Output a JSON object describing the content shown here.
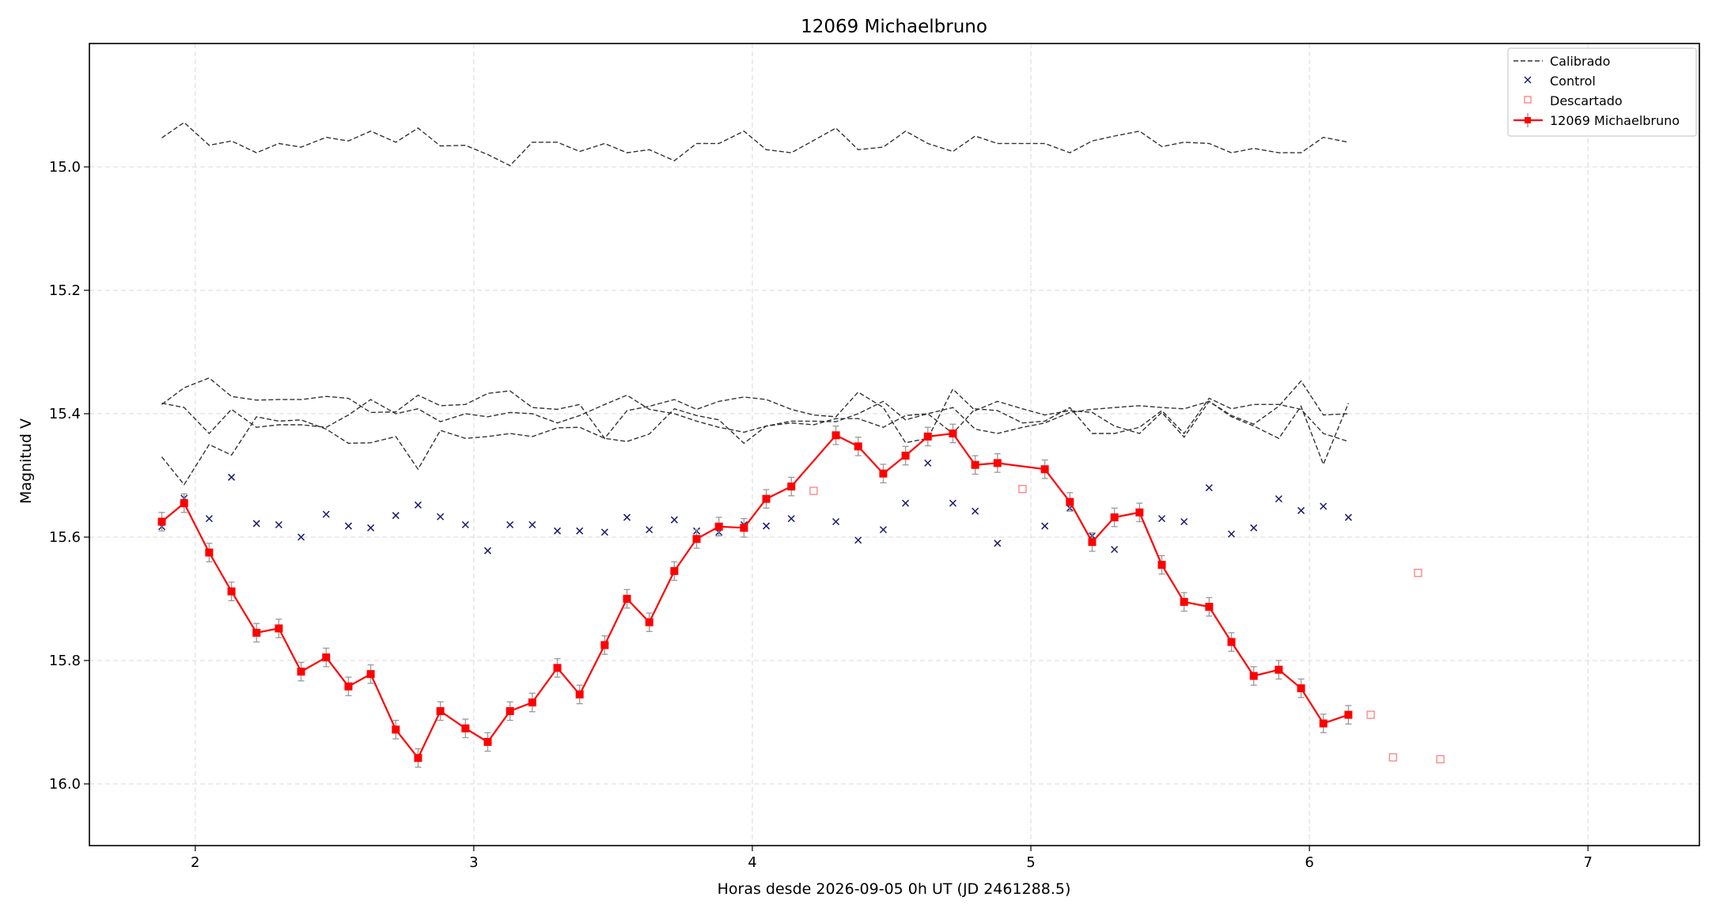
{
  "chart_data": {
    "type": "line",
    "title": "12069 Michaelbruno",
    "xlabel": "Horas desde 2026-09-05 0h UT (JD 2461288.5)",
    "ylabel": "Magnitud V",
    "xlim": [
      1.62,
      7.4
    ],
    "ylim": [
      16.1,
      14.8
    ],
    "y_inverted": true,
    "grid": true,
    "legend_position": "top-right",
    "x_ticks": [
      2,
      3,
      4,
      5,
      6,
      7
    ],
    "x_tick_labels": [
      "2",
      "3",
      "4",
      "5",
      "6",
      "7"
    ],
    "y_ticks": [
      15.0,
      15.2,
      15.4,
      15.6,
      15.8,
      16.0
    ],
    "y_tick_labels": [
      "15.0",
      "15.2",
      "15.4",
      "15.6",
      "15.8",
      "16.0"
    ],
    "legend": [
      "Calibrado",
      "Control",
      "Descartado",
      "12069 Michaelbruno"
    ],
    "colors": {
      "target": "#ff0000",
      "control": "#191970",
      "discarded": "#ff7f7f",
      "calibrated": "#333333",
      "errorbar": "#999999",
      "grid": "#d9d9d9"
    },
    "target": {
      "name": "12069 Michaelbruno",
      "x": [
        1.88,
        1.96,
        2.05,
        2.13,
        2.22,
        2.3,
        2.38,
        2.47,
        2.55,
        2.63,
        2.72,
        2.8,
        2.88,
        2.97,
        3.05,
        3.13,
        3.21,
        3.3,
        3.38,
        3.47,
        3.55,
        3.63,
        3.72,
        3.8,
        3.88,
        3.97,
        4.05,
        4.14,
        4.3,
        4.38,
        4.47,
        4.55,
        4.63,
        4.72,
        4.8,
        4.88,
        5.05,
        5.14,
        5.22,
        5.3,
        5.39,
        5.47,
        5.55,
        5.64,
        5.72,
        5.8,
        5.89,
        5.97,
        6.05,
        6.14
      ],
      "y": [
        15.575,
        15.545,
        15.625,
        15.688,
        15.755,
        15.748,
        15.818,
        15.795,
        15.842,
        15.822,
        15.912,
        15.958,
        15.882,
        15.91,
        15.932,
        15.882,
        15.868,
        15.812,
        15.855,
        15.775,
        15.7,
        15.738,
        15.655,
        15.603,
        15.583,
        15.585,
        15.538,
        15.518,
        15.435,
        15.453,
        15.497,
        15.468,
        15.437,
        15.432,
        15.483,
        15.48,
        15.49,
        15.543,
        15.608,
        15.568,
        15.56,
        15.645,
        15.705,
        15.713,
        15.77,
        15.825,
        15.815,
        15.845,
        15.902,
        15.888
      ],
      "yerr": 0.015
    },
    "control": {
      "name": "Control",
      "x": [
        1.88,
        1.96,
        2.05,
        2.13,
        2.22,
        2.3,
        2.38,
        2.47,
        2.55,
        2.63,
        2.72,
        2.8,
        2.88,
        2.97,
        3.05,
        3.13,
        3.21,
        3.3,
        3.38,
        3.47,
        3.55,
        3.63,
        3.72,
        3.8,
        3.88,
        3.97,
        4.05,
        4.14,
        4.3,
        4.38,
        4.47,
        4.55,
        4.63,
        4.72,
        4.8,
        4.88,
        5.05,
        5.14,
        5.22,
        5.3,
        5.39,
        5.47,
        5.55,
        5.64,
        5.72,
        5.8,
        5.89,
        5.97,
        6.05,
        6.14
      ],
      "y": [
        15.583,
        15.537,
        15.57,
        15.503,
        15.578,
        15.58,
        15.6,
        15.563,
        15.582,
        15.585,
        15.565,
        15.548,
        15.567,
        15.58,
        15.622,
        15.58,
        15.58,
        15.59,
        15.59,
        15.592,
        15.568,
        15.588,
        15.572,
        15.59,
        15.592,
        15.58,
        15.582,
        15.57,
        15.575,
        15.605,
        15.588,
        15.545,
        15.48,
        15.545,
        15.558,
        15.61,
        15.582,
        15.553,
        15.598,
        15.62,
        15.56,
        15.57,
        15.575,
        15.52,
        15.595,
        15.585,
        15.538,
        15.557,
        15.55,
        15.568
      ]
    },
    "discarded": {
      "name": "Descartado",
      "x": [
        4.22,
        4.97,
        6.22,
        6.3,
        6.39,
        6.47
      ],
      "y": [
        15.525,
        15.522,
        15.888,
        15.957,
        15.658,
        15.96
      ]
    },
    "calibrated": {
      "name": "Calibrado",
      "x": [
        1.88,
        1.96,
        2.05,
        2.13,
        2.22,
        2.3,
        2.38,
        2.47,
        2.55,
        2.63,
        2.72,
        2.8,
        2.88,
        2.97,
        3.05,
        3.13,
        3.21,
        3.3,
        3.38,
        3.47,
        3.55,
        3.63,
        3.72,
        3.8,
        3.88,
        3.97,
        4.05,
        4.14,
        4.22,
        4.3,
        4.38,
        4.47,
        4.55,
        4.63,
        4.72,
        4.8,
        4.88,
        4.97,
        5.05,
        5.14,
        5.22,
        5.3,
        5.39,
        5.47,
        5.55,
        5.64,
        5.72,
        5.8,
        5.89,
        5.97,
        6.05,
        6.14
      ],
      "series": [
        [
          14.953,
          14.928,
          14.965,
          14.958,
          14.977,
          14.962,
          14.968,
          14.952,
          14.958,
          14.942,
          14.96,
          14.937,
          14.966,
          14.965,
          14.98,
          14.998,
          14.96,
          14.96,
          14.975,
          14.962,
          14.977,
          14.972,
          14.99,
          14.962,
          14.962,
          14.942,
          14.972,
          14.977,
          14.957,
          14.937,
          14.972,
          14.968,
          14.942,
          14.962,
          14.975,
          14.95,
          14.962,
          14.962,
          14.962,
          14.977,
          14.958,
          14.95,
          14.942,
          14.967,
          14.96,
          14.962,
          14.977,
          14.97,
          14.977,
          14.977,
          14.952,
          14.96
        ],
        [
          15.383,
          15.39,
          15.432,
          15.393,
          15.422,
          15.418,
          15.418,
          15.422,
          15.402,
          15.377,
          15.4,
          15.392,
          15.413,
          15.4,
          15.405,
          15.398,
          15.4,
          15.415,
          15.403,
          15.385,
          15.37,
          15.393,
          15.4,
          15.412,
          15.422,
          15.43,
          15.42,
          15.415,
          15.418,
          15.408,
          15.408,
          15.422,
          15.403,
          15.4,
          15.39,
          15.425,
          15.432,
          15.422,
          15.415,
          15.398,
          15.393,
          15.39,
          15.387,
          15.39,
          15.392,
          15.38,
          15.403,
          15.417,
          15.388,
          15.347,
          15.402,
          15.4
        ],
        [
          15.47,
          15.515,
          15.45,
          15.467,
          15.405,
          15.412,
          15.41,
          15.425,
          15.448,
          15.447,
          15.437,
          15.49,
          15.427,
          15.44,
          15.437,
          15.432,
          15.437,
          15.423,
          15.422,
          15.44,
          15.445,
          15.433,
          15.392,
          15.403,
          15.41,
          15.448,
          15.42,
          15.412,
          15.412,
          15.413,
          15.4,
          15.38,
          15.41,
          15.4,
          15.432,
          15.392,
          15.395,
          15.415,
          15.412,
          15.39,
          15.432,
          15.432,
          15.422,
          15.395,
          15.432,
          15.375,
          15.392,
          15.385,
          15.385,
          15.393,
          15.432,
          15.445
        ],
        [
          15.385,
          15.358,
          15.342,
          15.372,
          15.378,
          15.377,
          15.377,
          15.372,
          15.375,
          15.398,
          15.397,
          15.37,
          15.387,
          15.385,
          15.367,
          15.363,
          15.39,
          15.393,
          15.385,
          15.44,
          15.395,
          15.388,
          15.377,
          15.393,
          15.38,
          15.373,
          15.377,
          15.393,
          15.402,
          15.405,
          15.365,
          15.39,
          15.447,
          15.44,
          15.36,
          15.395,
          15.38,
          15.392,
          15.402,
          15.395,
          15.398,
          15.42,
          15.432,
          15.398,
          15.438,
          15.38,
          15.405,
          15.42,
          15.44,
          15.388,
          15.482,
          15.383
        ]
      ]
    }
  }
}
